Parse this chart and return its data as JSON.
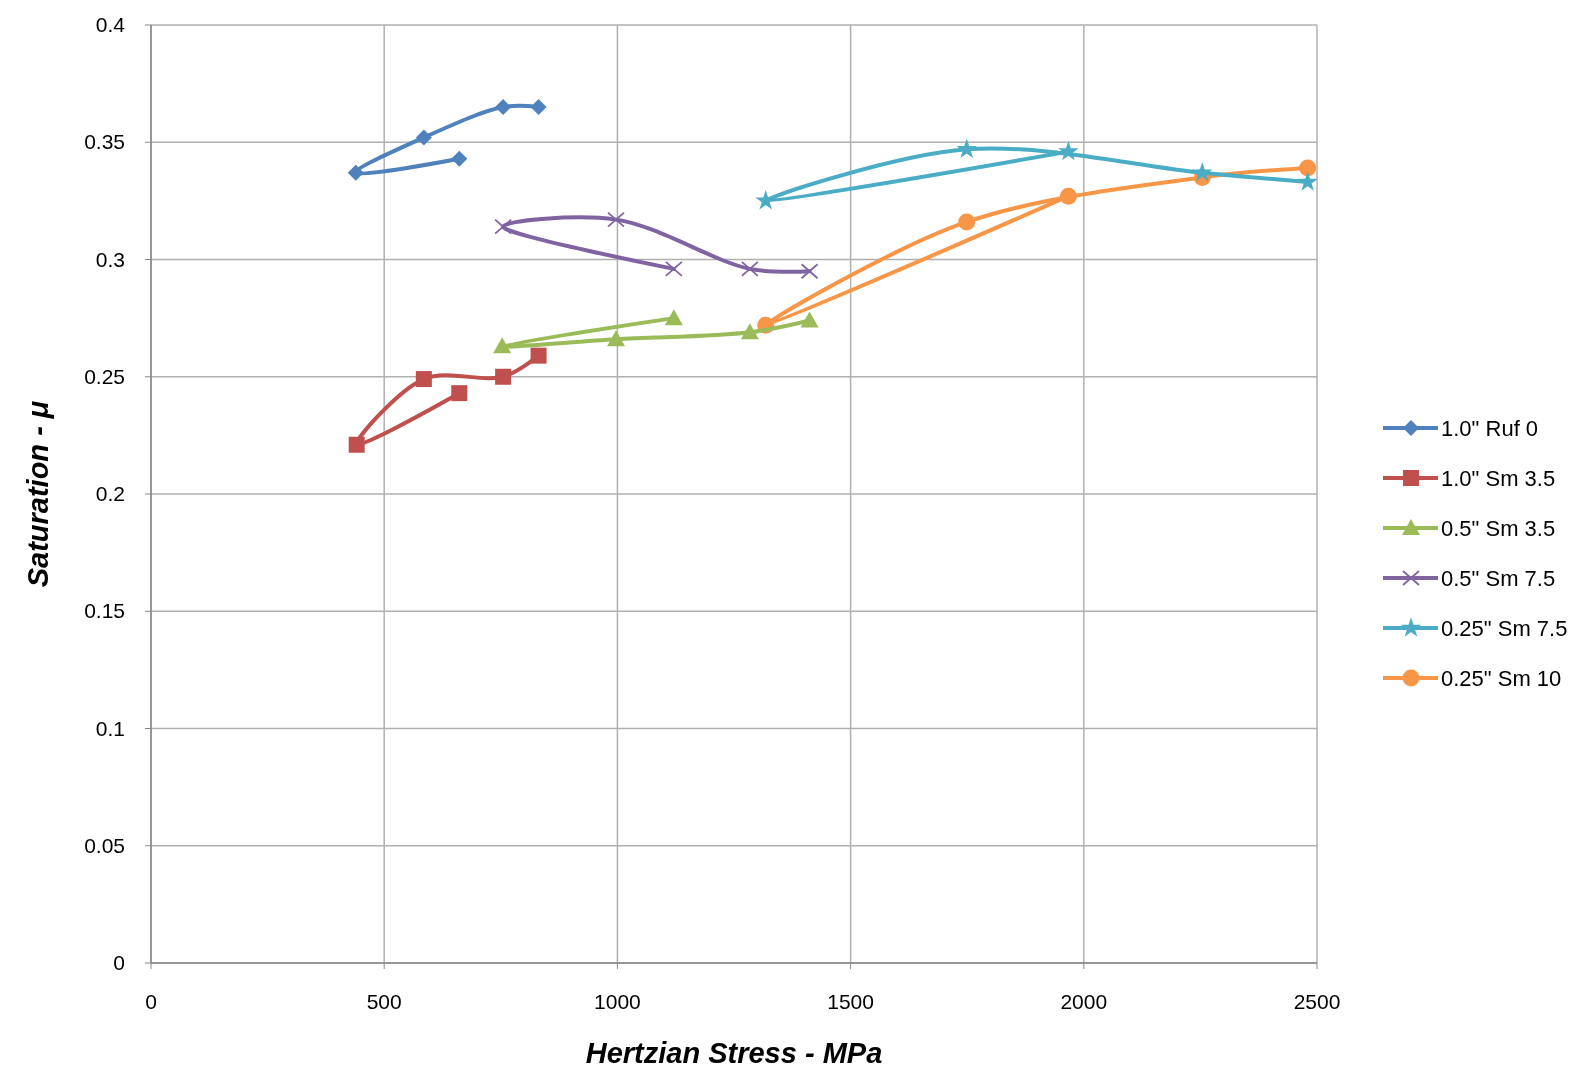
{
  "chart_data": {
    "type": "line",
    "xlabel": "Hertzian Stress - MPa",
    "ylabel": "Saturation - μ",
    "xlim": [
      0,
      2500
    ],
    "xticks": [
      0,
      500,
      1000,
      1500,
      2000,
      2500
    ],
    "ylim": [
      0,
      0.4
    ],
    "yticks": [
      0,
      0.05,
      0.1,
      0.15,
      0.2,
      0.25,
      0.3,
      0.35,
      0.4
    ],
    "grid": true,
    "legend": "right",
    "series": [
      {
        "name": "1.0\" Ruf 0",
        "color": "#4f81bd",
        "marker": "diamond",
        "x": [
          661,
          439,
          585,
          755,
          831
        ],
        "values": [
          0.343,
          0.337,
          0.352,
          0.365,
          0.365
        ]
      },
      {
        "name": "1.0\" Sm 3.5",
        "color": "#c0504d",
        "marker": "square",
        "x": [
          661,
          441,
          585,
          755,
          831
        ],
        "values": [
          0.243,
          0.221,
          0.249,
          0.25,
          0.259
        ]
      },
      {
        "name": "0.5\" Sm 3.5",
        "color": "#9bbb59",
        "marker": "triangle",
        "x": [
          1121,
          753,
          997,
          1284,
          1412
        ],
        "values": [
          0.275,
          0.263,
          0.266,
          0.269,
          0.274
        ]
      },
      {
        "name": "0.5\" Sm 7.5",
        "color": "#8064a2",
        "marker": "cross",
        "x": [
          1121,
          755,
          997,
          1284,
          1412
        ],
        "values": [
          0.296,
          0.314,
          0.317,
          0.296,
          0.295
        ]
      },
      {
        "name": "0.25\" Sm 7.5",
        "color": "#4bacc6",
        "marker": "star",
        "x": [
          1967,
          1318,
          1749,
          2254,
          2480
        ],
        "values": [
          0.346,
          0.325,
          0.347,
          0.337,
          0.333
        ]
      },
      {
        "name": "0.25\" Sm 10",
        "color": "#f79646",
        "marker": "circle",
        "x": [
          1967,
          1318,
          1749,
          2254,
          2480
        ],
        "values": [
          0.327,
          0.272,
          0.316,
          0.335,
          0.339
        ]
      }
    ]
  }
}
